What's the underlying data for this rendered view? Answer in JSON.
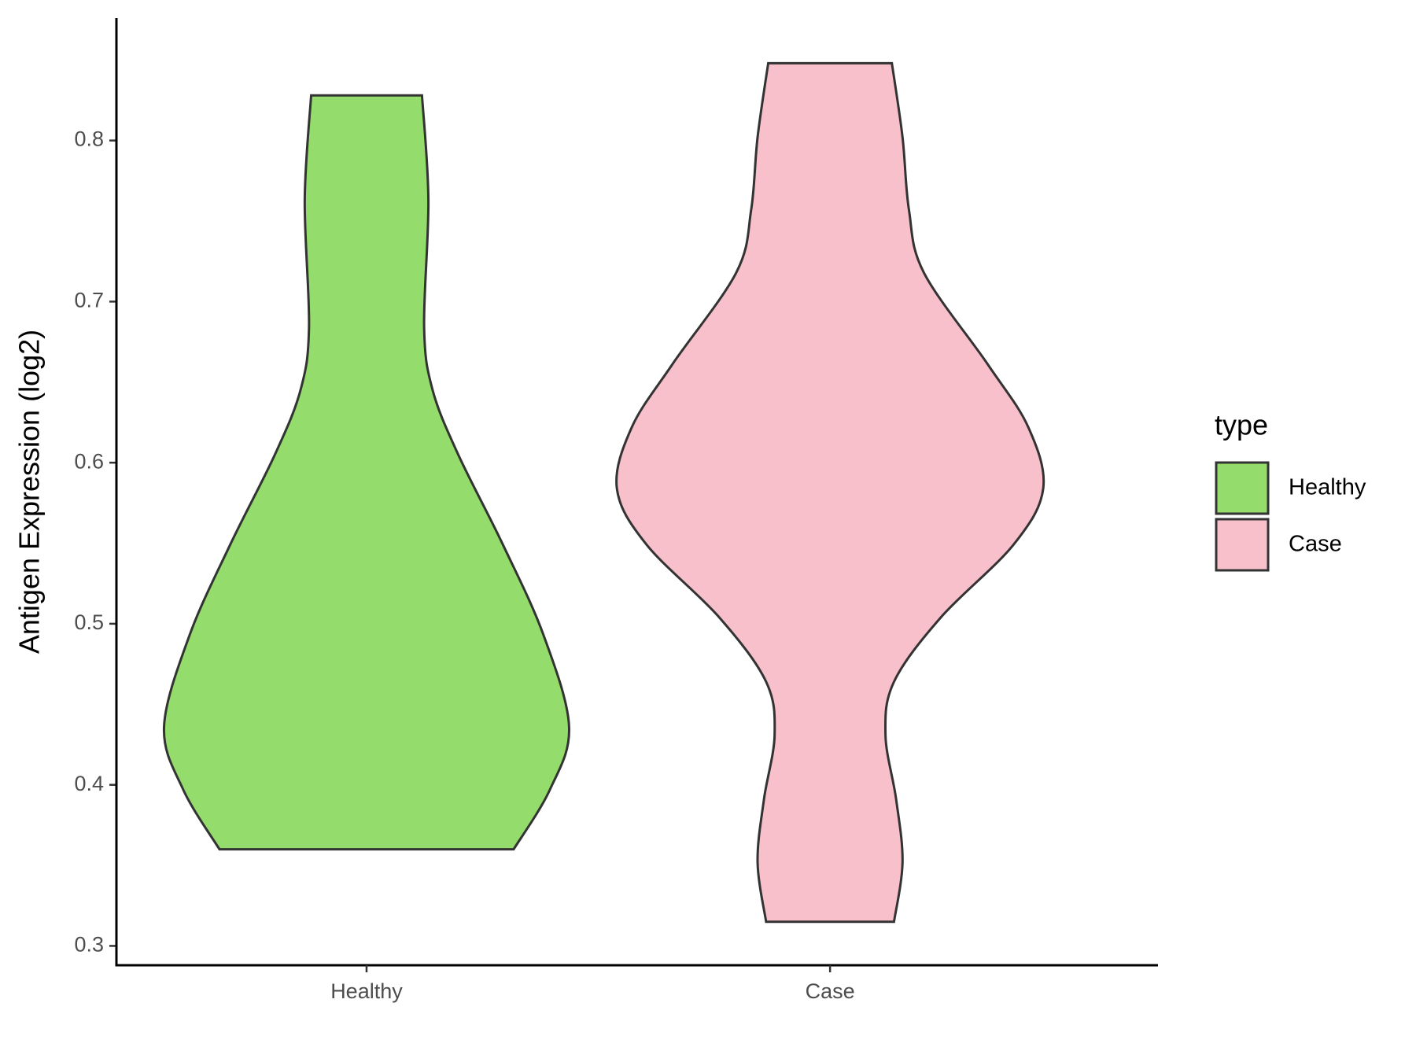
{
  "chart_data": {
    "type": "violin",
    "y_label": "Antigen Expression (log2)",
    "categories": [
      "Healthy",
      "Case"
    ],
    "legend_title": "type",
    "legend_position": "right",
    "ylim": [
      0.288,
      0.876
    ],
    "yticks": [
      0.3,
      0.4,
      0.5,
      0.6,
      0.7,
      0.8
    ],
    "series": [
      {
        "name": "Healthy",
        "color": "#94dc6b",
        "y": [
          0.828,
          0.763,
          0.684,
          0.645,
          0.605,
          0.549,
          0.493,
          0.436,
          0.397,
          0.36
        ],
        "density": [
          0.26,
          0.29,
          0.27,
          0.31,
          0.43,
          0.64,
          0.83,
          0.95,
          0.86,
          0.69
        ]
      },
      {
        "name": "Case",
        "color": "#f7c0cb",
        "y": [
          0.848,
          0.802,
          0.757,
          0.718,
          0.661,
          0.622,
          0.584,
          0.549,
          0.504,
          0.464,
          0.431,
          0.391,
          0.352,
          0.315
        ],
        "density": [
          0.29,
          0.34,
          0.37,
          0.44,
          0.74,
          0.93,
          1.0,
          0.86,
          0.52,
          0.3,
          0.26,
          0.31,
          0.34,
          0.3
        ]
      }
    ]
  }
}
